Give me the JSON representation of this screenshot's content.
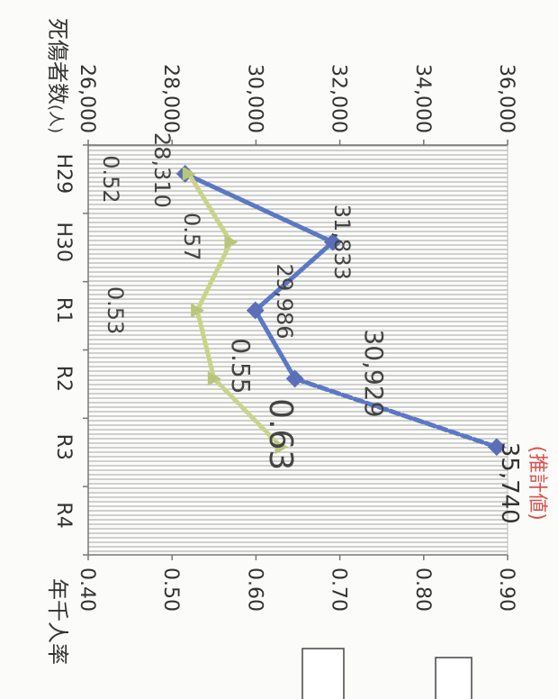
{
  "chart_data": {
    "type": "line",
    "categories": [
      "H29",
      "H30",
      "R1",
      "R2",
      "R3",
      "R4"
    ],
    "left_axis": {
      "label": "死傷者数",
      "unit": "(人)",
      "ticks": [
        "26,000",
        "28,000",
        "30,000",
        "32,000",
        "34,000",
        "36,000"
      ],
      "ylim": [
        26000,
        36000
      ]
    },
    "right_axis": {
      "label": "年千人率",
      "ticks": [
        "0.40",
        "0.50",
        "0.60",
        "0.70",
        "0.80",
        "0.90"
      ],
      "ylim": [
        0.4,
        0.9
      ]
    },
    "series": [
      {
        "axis": "left",
        "color": "#5b78c4",
        "points": [
          {
            "category": "H29",
            "value": 28310,
            "label": "28,310"
          },
          {
            "category": "H30",
            "value": 31833,
            "label": "31,833"
          },
          {
            "category": "R1",
            "value": 29986,
            "label": "29,986"
          },
          {
            "category": "R2",
            "value": 30929,
            "label": "30,929"
          },
          {
            "category": "R3",
            "value": 35740,
            "label": "35,740",
            "estimated": true
          }
        ]
      },
      {
        "axis": "right",
        "color": "#c9d48a",
        "points": [
          {
            "category": "H29",
            "value": 0.52,
            "label": "0.52"
          },
          {
            "category": "H30",
            "value": 0.57,
            "label": "0.57"
          },
          {
            "category": "R1",
            "value": 0.53,
            "label": "0.53"
          },
          {
            "category": "R2",
            "value": 0.55,
            "label": "0.55"
          },
          {
            "category": "R3",
            "value": 0.63,
            "label": "0.63",
            "estimated": true
          }
        ]
      }
    ],
    "estimate_note": "(推計値)",
    "grid": true
  }
}
